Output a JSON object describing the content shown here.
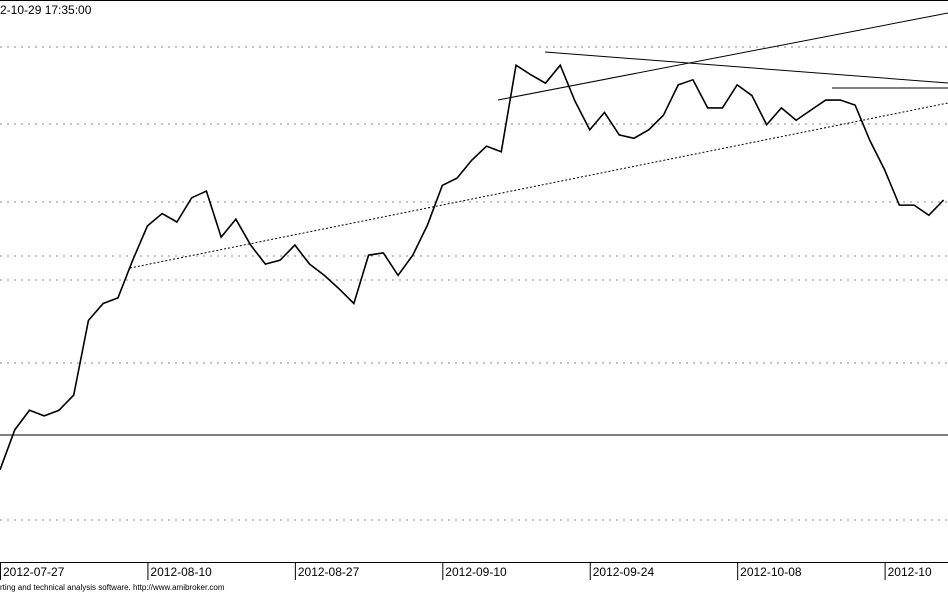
{
  "chart_data": {
    "type": "line",
    "title": "2-10-29 17:35:00",
    "footer": "rting and technical analysis software. http://www.amibroker.com",
    "x": [
      0,
      1,
      2,
      3,
      4,
      5,
      6,
      7,
      8,
      9,
      10,
      11,
      12,
      13,
      14,
      15,
      16,
      17,
      18,
      19,
      20,
      21,
      22,
      23,
      24,
      25,
      26,
      27,
      28,
      29,
      30,
      31,
      32,
      33,
      34,
      35,
      36,
      37,
      38,
      39,
      40,
      41,
      42,
      43,
      44,
      45,
      46,
      47,
      48,
      49,
      50,
      51,
      52,
      53,
      54,
      55,
      56,
      57,
      58,
      59,
      60,
      61,
      62,
      63,
      64
    ],
    "series": [
      {
        "color": "#000000",
        "values": [
          16.4,
          23.5,
          27,
          26,
          27,
          29.7,
          43,
          46,
          47,
          53.7,
          59.8,
          62,
          60.5,
          64.8,
          66,
          57.8,
          61,
          56.4,
          53,
          53.7,
          56.4,
          53,
          51,
          48.6,
          46,
          54.6,
          55,
          51,
          54.6,
          60,
          67,
          68.3,
          71.5,
          74,
          73,
          88.4,
          86.7,
          85.2,
          88.4,
          82,
          76.9,
          80,
          76,
          75.4,
          76.9,
          79.5,
          84.9,
          85.8,
          80.8,
          80.8,
          84.9,
          83,
          77.8,
          80.8,
          78.6,
          80.4,
          82.2,
          82.2,
          81.3,
          75,
          69.8,
          63.5,
          63.5,
          61.7,
          64.4
        ]
      }
    ],
    "xlim": [
      0,
      64.3
    ],
    "xticks": [
      {
        "value": 0,
        "label": "2012-07-27"
      },
      {
        "value": 10,
        "label": "2012-08-10"
      },
      {
        "value": 20,
        "label": "2012-08-27"
      },
      {
        "value": 30,
        "label": "2012-09-10"
      },
      {
        "value": 40,
        "label": "2012-09-24"
      },
      {
        "value": 50,
        "label": "2012-10-08"
      },
      {
        "value": 60,
        "label": "2012-10"
      }
    ],
    "ylim": [
      0,
      100
    ]
  }
}
